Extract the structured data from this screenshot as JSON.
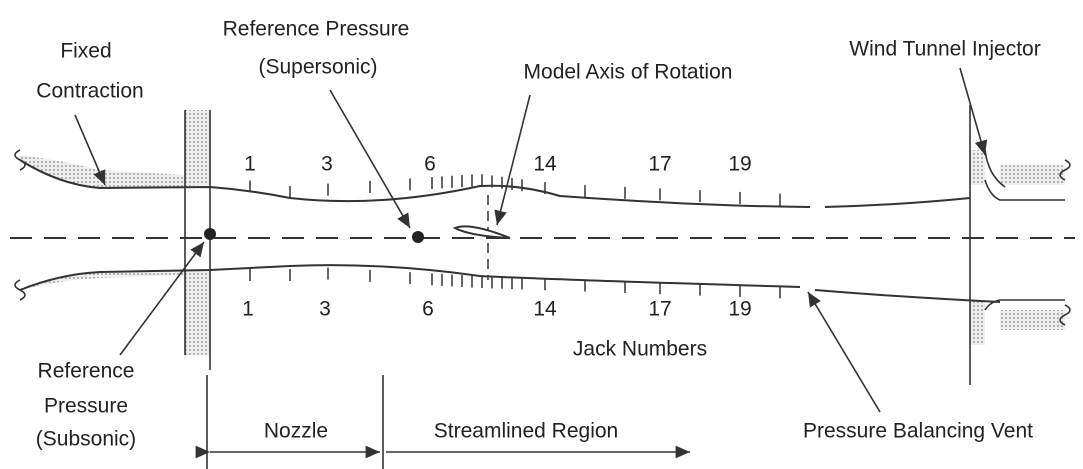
{
  "labels": {
    "fixed_contraction": [
      "Fixed",
      "Contraction"
    ],
    "reference_supersonic": [
      "Reference Pressure",
      "(Supersonic)"
    ],
    "model_axis": "Model Axis of Rotation",
    "injector": "Wind Tunnel Injector",
    "jack_numbers": "Jack Numbers",
    "reference_subsonic": [
      "Reference",
      "Pressure",
      "(Subsonic)"
    ],
    "nozzle": "Nozzle",
    "streamlined": "Streamlined Region",
    "vent": "Pressure Balancing Vent"
  },
  "jacks": {
    "top": [
      1,
      3,
      6,
      14,
      17,
      19
    ],
    "bottom": [
      1,
      3,
      6,
      14,
      17,
      19
    ]
  }
}
